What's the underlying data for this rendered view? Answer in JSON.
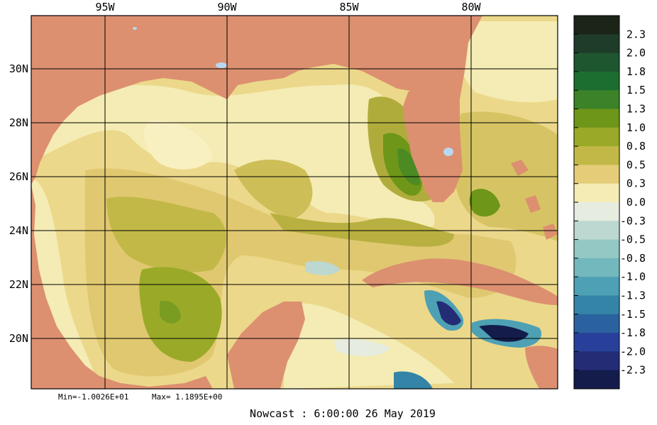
{
  "map": {
    "lon_labels": [
      "95W",
      "90W",
      "85W",
      "80W"
    ],
    "lat_labels": [
      "30N",
      "28N",
      "26N",
      "24N",
      "22N",
      "20N"
    ],
    "stats": {
      "min": "Min=-1.0026E+01",
      "max": "Max= 1.1895E+00"
    },
    "caption": "Nowcast :  6:00:00  26 May 2019",
    "colors": {
      "land": "#dc9070",
      "lake": "#b8d8f0",
      "grid": "#000000"
    }
  },
  "colorbar": {
    "labels": [
      "2.3",
      "2.0",
      "1.8",
      "1.5",
      "1.3",
      "1.0",
      "0.8",
      "0.5",
      "0.3",
      "0.0",
      "-0.3",
      "-0.5",
      "-0.8",
      "-1.0",
      "-1.3",
      "-1.5",
      "-1.8",
      "-2.0",
      "-2.3"
    ],
    "colors": [
      "#1c2418",
      "#1e3c28",
      "#1e5630",
      "#1c6e30",
      "#3c8228",
      "#6e9618",
      "#9aaa28",
      "#c2b848",
      "#e4cc78",
      "#f4ecb4",
      "#e6ece0",
      "#bcd8d0",
      "#94c8c4",
      "#72b8bc",
      "#4ea0b4",
      "#3484a8",
      "#2a62a0",
      "#28409a",
      "#232c74",
      "#141c4c"
    ]
  }
}
